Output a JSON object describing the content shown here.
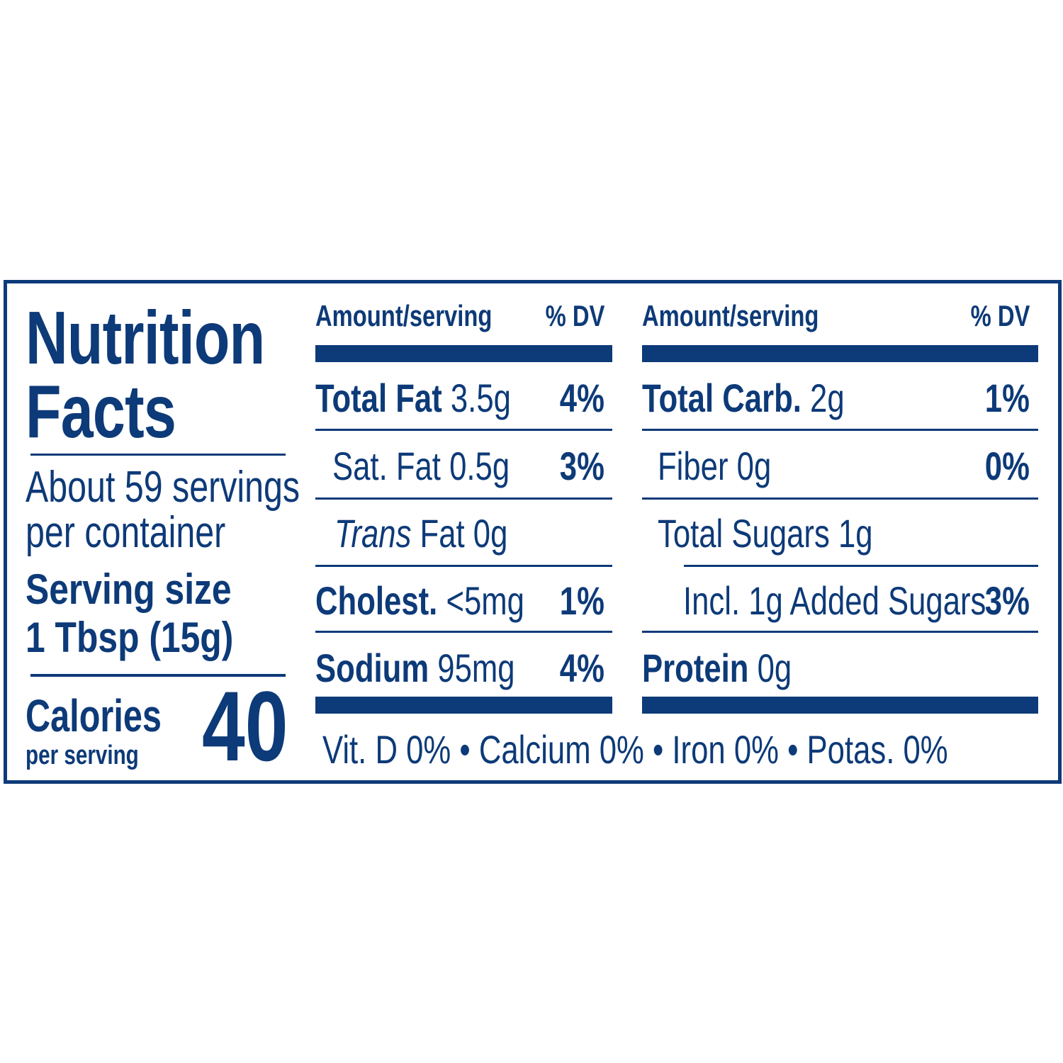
{
  "panel": {
    "title_line1": "Nutrition",
    "title_line2": "Facts",
    "servings_line1": "About 59 servings",
    "servings_line2": "per container",
    "serving_size_label": "Serving size",
    "serving_size_value": "1 Tbsp (15g)",
    "calories_label": "Calories",
    "calories_sub": "per serving",
    "calories_value": "40"
  },
  "left_table": {
    "header_amount": "Amount/serving",
    "header_dv": "% DV",
    "rows": [
      {
        "name": "Total Fat",
        "amount": "3.5g",
        "dv": "4%"
      },
      {
        "name": "Sat. Fat",
        "amount": "0.5g",
        "dv": "3%"
      },
      {
        "name": "Trans",
        "amount": "Fat 0g",
        "dv": ""
      },
      {
        "name": "Cholest.",
        "amount": "<5mg",
        "dv": "1%"
      },
      {
        "name": "Sodium",
        "amount": "95mg",
        "dv": "4%"
      }
    ]
  },
  "right_table": {
    "header_amount": "Amount/serving",
    "header_dv": "% DV",
    "rows": [
      {
        "name": "Total Carb.",
        "amount": "2g",
        "dv": "1%"
      },
      {
        "name": "Fiber",
        "amount": "0g",
        "dv": "0%"
      },
      {
        "name": "Total Sugars",
        "amount": "1g",
        "dv": ""
      },
      {
        "name": "Incl. 1g Added Sugars",
        "amount": "",
        "dv": "3%"
      },
      {
        "name": "Protein",
        "amount": "0g",
        "dv": ""
      }
    ]
  },
  "footer": {
    "vitamins": "Vit. D 0% • Calcium 0% • Iron 0% • Potas. 0%"
  },
  "colors": {
    "ink": "#0d3a78",
    "background": "#ffffff"
  }
}
